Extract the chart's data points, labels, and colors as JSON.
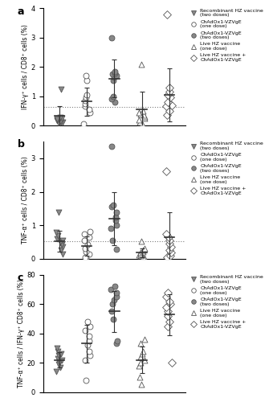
{
  "panels": [
    {
      "label": "a",
      "ylabel": "IFN-γ⁺ cells / CD8⁺ cells (%)",
      "ylim": [
        0,
        4
      ],
      "yticks": [
        0,
        1,
        2,
        3,
        4
      ],
      "dotted_line": 0.63,
      "groups": [
        {
          "name": "Recombinant HZ vaccine\n(two doses)",
          "marker": "v",
          "color": "#888888",
          "filled": true,
          "x": 1,
          "points": [
            0.08,
            0.1,
            0.12,
            0.15,
            0.18,
            0.2,
            0.22,
            0.25,
            0.28,
            1.25
          ],
          "mean": 0.32,
          "sd": 0.35
        },
        {
          "name": "ChAdOx1-VZVgE\n(one dose)",
          "marker": "o",
          "color": "#ffffff",
          "filled": false,
          "x": 2,
          "points": [
            0.05,
            0.45,
            0.55,
            0.65,
            0.75,
            0.85,
            0.95,
            1.05,
            1.55,
            1.7
          ],
          "mean": 0.82,
          "sd": 0.48
        },
        {
          "name": "ChAdOx1-VZVgE\n(two doses)",
          "marker": "o",
          "color": "#888888",
          "filled": true,
          "x": 3,
          "points": [
            0.8,
            0.9,
            1.0,
            1.55,
            1.65,
            1.7,
            1.75,
            1.8,
            1.85,
            3.0
          ],
          "mean": 1.6,
          "sd": 0.65
        },
        {
          "name": "Live HZ vaccine\n(one dose)",
          "marker": "^",
          "color": "#ffffff",
          "filled": false,
          "x": 4,
          "points": [
            0.05,
            0.1,
            0.2,
            0.25,
            0.3,
            0.35,
            0.4,
            0.45,
            0.5,
            2.1
          ],
          "mean": 0.55,
          "sd": 0.6
        },
        {
          "name": "Live HZ vaccine +\nChAdOx1-VZVgE",
          "marker": "D",
          "color": "#ffffff",
          "filled": false,
          "x": 5,
          "points": [
            0.35,
            0.5,
            0.65,
            0.7,
            0.8,
            0.95,
            1.05,
            1.15,
            1.3,
            3.8
          ],
          "mean": 1.05,
          "sd": 0.9
        }
      ]
    },
    {
      "label": "b",
      "ylabel": "TNF-α⁺ cells / CD8⁺ cells (%)",
      "ylim": [
        0,
        3.5
      ],
      "yticks": [
        0,
        1,
        2,
        3
      ],
      "dotted_line": 0.52,
      "groups": [
        {
          "name": "Recombinant HZ vaccine\n(two doses)",
          "marker": "v",
          "color": "#888888",
          "filled": true,
          "x": 1,
          "points": [
            0.15,
            0.25,
            0.35,
            0.42,
            0.5,
            0.55,
            0.6,
            0.7,
            0.8,
            1.4
          ],
          "mean": 0.52,
          "sd": 0.32
        },
        {
          "name": "ChAdOx1-VZVgE\n(one dose)",
          "marker": "o",
          "color": "#ffffff",
          "filled": false,
          "x": 2,
          "points": [
            0.02,
            0.05,
            0.15,
            0.22,
            0.3,
            0.42,
            0.55,
            0.65,
            0.75,
            0.82
          ],
          "mean": 0.38,
          "sd": 0.28
        },
        {
          "name": "ChAdOx1-VZVgE\n(two doses)",
          "marker": "o",
          "color": "#888888",
          "filled": true,
          "x": 3,
          "points": [
            0.28,
            0.55,
            0.9,
            1.0,
            1.15,
            1.25,
            1.4,
            1.55,
            1.6,
            3.35
          ],
          "mean": 1.2,
          "sd": 0.8
        },
        {
          "name": "Live HZ vaccine\n(one dose)",
          "marker": "^",
          "color": "#ffffff",
          "filled": false,
          "x": 4,
          "points": [
            0.02,
            0.05,
            0.1,
            0.12,
            0.15,
            0.18,
            0.22,
            0.25,
            0.3,
            0.52
          ],
          "mean": 0.18,
          "sd": 0.14
        },
        {
          "name": "Live HZ vaccine +\nChAdOx1-VZVgE",
          "marker": "D",
          "color": "#ffffff",
          "filled": false,
          "x": 5,
          "points": [
            0.05,
            0.1,
            0.18,
            0.25,
            0.35,
            0.45,
            0.55,
            0.65,
            0.75,
            2.62
          ],
          "mean": 0.65,
          "sd": 0.75
        }
      ]
    },
    {
      "label": "c",
      "ylabel": "TNF-α⁺ cells / IFN-γ⁺ CD8⁺ cells (%)",
      "ylim": [
        0,
        80
      ],
      "yticks": [
        0,
        20,
        40,
        60,
        80
      ],
      "dotted_line": null,
      "groups": [
        {
          "name": "Recombinant HZ vaccine\n(two doses)",
          "marker": "v",
          "color": "#888888",
          "filled": true,
          "x": 1,
          "points": [
            14,
            17,
            19,
            20,
            22,
            23,
            25,
            26,
            28,
            30
          ],
          "mean": 22,
          "sd": 5
        },
        {
          "name": "ChAdOx1-VZVgE\n(one dose)",
          "marker": "o",
          "color": "#ffffff",
          "filled": false,
          "x": 2,
          "points": [
            8,
            22,
            25,
            28,
            32,
            35,
            38,
            42,
            45,
            48
          ],
          "mean": 33,
          "sd": 13
        },
        {
          "name": "ChAdOx1-VZVgE\n(two doses)",
          "marker": "o",
          "color": "#888888",
          "filled": true,
          "x": 3,
          "points": [
            33,
            35,
            50,
            55,
            60,
            63,
            65,
            68,
            70,
            72
          ],
          "mean": 55,
          "sd": 14
        },
        {
          "name": "Live HZ vaccine\n(one dose)",
          "marker": "^",
          "color": "#ffffff",
          "filled": false,
          "x": 4,
          "points": [
            5,
            10,
            18,
            20,
            22,
            24,
            26,
            28,
            33,
            36
          ],
          "mean": 22,
          "sd": 9
        },
        {
          "name": "Live HZ vaccine +\nChAdOx1-VZVgE",
          "marker": "D",
          "color": "#ffffff",
          "filled": false,
          "x": 5,
          "points": [
            20,
            45,
            48,
            52,
            55,
            58,
            60,
            62,
            65,
            68
          ],
          "mean": 53,
          "sd": 14
        }
      ]
    }
  ],
  "legend_entries": [
    {
      "label": "Recombinant HZ vaccine\n(two doses)",
      "marker": "v",
      "filled": true
    },
    {
      "label": "ChAdOx1-VZVgE\n(one dose)",
      "marker": "o",
      "filled": false
    },
    {
      "label": "ChAdOx1-VZVgE\n(two doses)",
      "marker": "o",
      "filled": true
    },
    {
      "label": "Live HZ vaccine\n(one dose)",
      "marker": "^",
      "filled": false
    },
    {
      "label": "Live HZ vaccine +\nChAdOx1-VZVgE",
      "marker": "D",
      "filled": false
    }
  ],
  "marker_color_filled": "#888888",
  "marker_color_edge": "#555555",
  "marker_size": 5,
  "errorbar_color": "#333333",
  "jitter_seed": 42
}
